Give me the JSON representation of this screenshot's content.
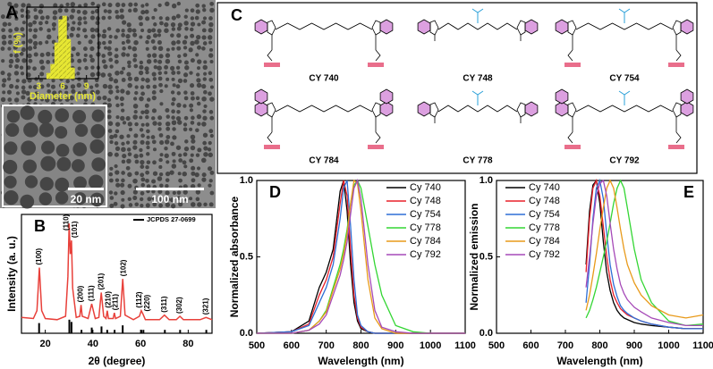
{
  "tem_image": {
    "panel_label": "A",
    "scale_bar_inset": "20 nm",
    "scale_bar_main": "100 nm"
  },
  "structures": {
    "panel_label": "C",
    "compounds": [
      "CY 740",
      "CY 748",
      "CY 754",
      "CY 784",
      "CY 778",
      "CY 792"
    ]
  },
  "chart_data": [
    {
      "type": "histogram",
      "xlabel": "Diameter (nm)",
      "ylabel": "f (%)",
      "bins": [
        4,
        4.5,
        5,
        5.5,
        6,
        6.5,
        7,
        7.5
      ],
      "values": [
        3,
        8,
        20,
        33,
        35,
        22,
        6
      ],
      "color": "#e6e633",
      "xlim": [
        1.5,
        10.5
      ],
      "xticks": [
        3,
        6,
        9
      ],
      "ylim": [
        0,
        40
      ]
    },
    {
      "type": "xrd",
      "panel_label": "B",
      "xlabel": "2θ (degree)",
      "ylabel": "Intensity (a. u.)",
      "color": "#e8403a",
      "xlim": [
        10,
        90
      ],
      "xticks": [
        20,
        40,
        60,
        80
      ],
      "ylim": [
        0,
        1.05
      ],
      "x": [
        10,
        15,
        16.5,
        17.5,
        18.5,
        20,
        25,
        28.5,
        29.5,
        30,
        30.5,
        31,
        31.5,
        33,
        34.5,
        35,
        35.5,
        38,
        39.5,
        41,
        42.5,
        43.5,
        44.5,
        45.5,
        46,
        46.5,
        48.5,
        49,
        49.5,
        51.5,
        52.5,
        53.5,
        57,
        59.5,
        60.3,
        61,
        62,
        68,
        70,
        72,
        75,
        76.5,
        78,
        85,
        87.5,
        90
      ],
      "values": [
        0.14,
        0.13,
        0.2,
        0.58,
        0.2,
        0.13,
        0.12,
        0.15,
        0.5,
        0.97,
        0.7,
        0.82,
        0.4,
        0.14,
        0.15,
        0.25,
        0.15,
        0.13,
        0.26,
        0.13,
        0.14,
        0.36,
        0.15,
        0.13,
        0.2,
        0.13,
        0.13,
        0.18,
        0.13,
        0.15,
        0.48,
        0.16,
        0.12,
        0.15,
        0.2,
        0.17,
        0.12,
        0.12,
        0.16,
        0.12,
        0.12,
        0.15,
        0.12,
        0.12,
        0.14,
        0.12
      ],
      "reference": {
        "name": "JCPDS 27-0699",
        "color": "#000000",
        "x": [
          17.4,
          30.1,
          31.0,
          35.2,
          39.5,
          43.6,
          46.0,
          49.1,
          52.5,
          60.3,
          61.2,
          70.2,
          76.6,
          87.6
        ],
        "values": [
          0.09,
          0.12,
          0.1,
          0.03,
          0.05,
          0.06,
          0.03,
          0.03,
          0.07,
          0.03,
          0.03,
          0.03,
          0.03,
          0.03
        ]
      },
      "peak_labels": [
        {
          "label": "(100)",
          "x": 17.5
        },
        {
          "label": "(110)",
          "x": 29
        },
        {
          "label": "(101)",
          "x": 32.5
        },
        {
          "label": "(200)",
          "x": 35
        },
        {
          "label": "(111)",
          "x": 39.5
        },
        {
          "label": "(201)",
          "x": 43.5
        },
        {
          "label": "(210)",
          "x": 46.5
        },
        {
          "label": "(211)",
          "x": 49.5
        },
        {
          "label": "(102)",
          "x": 53
        },
        {
          "label": "(112)",
          "x": 59.5
        },
        {
          "label": "(220)",
          "x": 63
        },
        {
          "label": "(311)",
          "x": 70
        },
        {
          "label": "(302)",
          "x": 76.5
        },
        {
          "label": "(321)",
          "x": 87.5
        }
      ]
    },
    {
      "type": "line",
      "panel_label": "D",
      "xlabel": "Wavelength (nm)",
      "ylabel": "Normalized absorbance",
      "xlim": [
        500,
        1100
      ],
      "xticks": [
        500,
        600,
        700,
        800,
        900,
        1000,
        1100
      ],
      "ylim": [
        0,
        1
      ],
      "yticks": [
        {
          "value": 0,
          "label": "0.0"
        },
        0.5,
        {
          "value": 1,
          "label": "1.0"
        }
      ],
      "legend": "top-right",
      "x": [
        500,
        600,
        650,
        680,
        700,
        720,
        740,
        750,
        760,
        770,
        780,
        790,
        800,
        820,
        840,
        860,
        900,
        950,
        1000,
        1100
      ],
      "series": [
        {
          "name": "Cy 740",
          "color": "#000000",
          "values": [
            0,
            0.01,
            0.08,
            0.3,
            0.4,
            0.55,
            0.93,
            1.0,
            0.8,
            0.45,
            0.2,
            0.08,
            0.03,
            0.01,
            0,
            0,
            0,
            0,
            0,
            0
          ]
        },
        {
          "name": "Cy 748",
          "color": "#e8202a",
          "values": [
            0,
            0.01,
            0.06,
            0.25,
            0.35,
            0.5,
            0.85,
            1.0,
            0.9,
            0.55,
            0.25,
            0.1,
            0.04,
            0.01,
            0,
            0,
            0,
            0,
            0,
            0
          ]
        },
        {
          "name": "Cy 754",
          "color": "#2f6fd6",
          "values": [
            0,
            0.01,
            0.05,
            0.2,
            0.3,
            0.45,
            0.75,
            0.95,
            1.0,
            0.7,
            0.35,
            0.12,
            0.05,
            0.01,
            0,
            0,
            0,
            0,
            0,
            0
          ]
        },
        {
          "name": "Cy 778",
          "color": "#33d633",
          "values": [
            0,
            0,
            0.02,
            0.08,
            0.15,
            0.3,
            0.45,
            0.55,
            0.68,
            0.85,
            0.97,
            1.0,
            0.95,
            0.7,
            0.45,
            0.25,
            0.05,
            0.01,
            0,
            0
          ]
        },
        {
          "name": "Cy 784",
          "color": "#e89a1a",
          "values": [
            0,
            0,
            0.02,
            0.08,
            0.14,
            0.28,
            0.42,
            0.52,
            0.65,
            0.85,
            1.0,
            0.98,
            0.8,
            0.35,
            0.1,
            0.03,
            0,
            0,
            0,
            0
          ]
        },
        {
          "name": "Cy 792",
          "color": "#a64ab8",
          "values": [
            0,
            0,
            0.02,
            0.06,
            0.12,
            0.25,
            0.38,
            0.48,
            0.6,
            0.78,
            0.95,
            1.0,
            0.88,
            0.45,
            0.15,
            0.04,
            0.01,
            0,
            0,
            0
          ]
        }
      ]
    },
    {
      "type": "line",
      "panel_label": "E",
      "xlabel": "Wavelength (nm)",
      "ylabel": "Normalized emission",
      "xlim": [
        500,
        1100
      ],
      "xticks": [
        500,
        600,
        700,
        800,
        900,
        1000,
        1100
      ],
      "ylim": [
        0,
        1
      ],
      "yticks": [
        {
          "value": 0,
          "label": "0.0"
        },
        0.5,
        {
          "value": 1,
          "label": "1.0"
        }
      ],
      "legend": "top-left",
      "x": [
        760,
        770,
        780,
        790,
        800,
        810,
        820,
        830,
        840,
        850,
        860,
        870,
        880,
        900,
        920,
        950,
        1000,
        1050,
        1100
      ],
      "series": [
        {
          "name": "Cy 740",
          "color": "#000000",
          "values": [
            0.45,
            0.8,
            0.97,
            1.0,
            0.85,
            0.6,
            0.4,
            0.28,
            0.2,
            0.15,
            0.12,
            0.1,
            0.09,
            0.07,
            0.06,
            0.05,
            0.04,
            0.03,
            0.03
          ]
        },
        {
          "name": "Cy 748",
          "color": "#e8202a",
          "values": [
            0.4,
            0.75,
            0.95,
            1.0,
            0.9,
            0.7,
            0.5,
            0.35,
            0.25,
            0.2,
            0.16,
            0.14,
            0.12,
            0.1,
            0.08,
            0.06,
            0.04,
            0.03,
            0.03
          ]
        },
        {
          "name": "Cy 754",
          "color": "#2f6fd6",
          "values": [
            0.2,
            0.45,
            0.75,
            0.95,
            1.0,
            0.88,
            0.65,
            0.45,
            0.32,
            0.24,
            0.18,
            0.15,
            0.13,
            0.1,
            0.08,
            0.06,
            0.04,
            0.03,
            0.03
          ]
        },
        {
          "name": "Cy 778",
          "color": "#33d633",
          "values": [
            0.1,
            0.15,
            0.22,
            0.3,
            0.4,
            0.5,
            0.6,
            0.72,
            0.85,
            0.95,
            1.0,
            0.95,
            0.82,
            0.55,
            0.35,
            0.2,
            0.08,
            0.05,
            0.06
          ]
        },
        {
          "name": "Cy 784",
          "color": "#e89a1a",
          "values": [
            0.15,
            0.25,
            0.38,
            0.52,
            0.68,
            0.82,
            0.95,
            1.0,
            0.95,
            0.82,
            0.68,
            0.55,
            0.45,
            0.33,
            0.25,
            0.18,
            0.12,
            0.1,
            0.12
          ]
        },
        {
          "name": "Cy 792",
          "color": "#a64ab8",
          "values": [
            0.3,
            0.5,
            0.72,
            0.9,
            0.98,
            1.0,
            0.9,
            0.72,
            0.55,
            0.42,
            0.32,
            0.26,
            0.22,
            0.17,
            0.14,
            0.1,
            0.07,
            0.05,
            0.05
          ]
        }
      ]
    }
  ]
}
